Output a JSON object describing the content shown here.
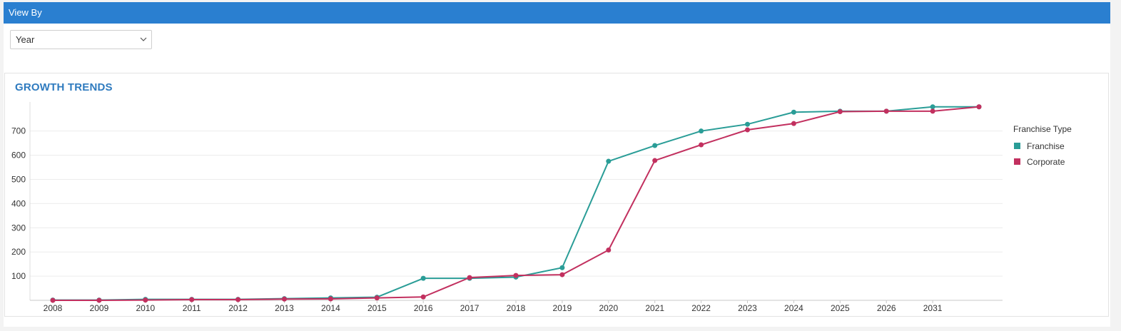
{
  "header": {
    "title": "View By"
  },
  "view_by": {
    "selected": "Year"
  },
  "chart_data": {
    "type": "line",
    "title": "GROWTH TRENDS",
    "xlabel": "",
    "ylabel": "",
    "categories": [
      "2008",
      "2009",
      "2010",
      "2011",
      "2012",
      "2013",
      "2014",
      "2015",
      "2016",
      "2017",
      "2018",
      "2019",
      "2020",
      "2021",
      "2022",
      "2023",
      "2024",
      "2025",
      "2026",
      "2031",
      ""
    ],
    "y_ticks": [
      100,
      200,
      300,
      400,
      500,
      600,
      700
    ],
    "ylim": [
      0,
      820
    ],
    "grid": true,
    "legend_title": "Franchise Type",
    "legend_position": "right",
    "series": [
      {
        "name": "Franchise",
        "color": "#2a9d97",
        "values": [
          1,
          1,
          4,
          4,
          4,
          7,
          10,
          13,
          91,
          91,
          96,
          135,
          575,
          640,
          700,
          728,
          778,
          782,
          782,
          800,
          800
        ]
      },
      {
        "name": "Corporate",
        "color": "#c2305f",
        "values": [
          0,
          0,
          1,
          3,
          3,
          5,
          6,
          10,
          14,
          94,
          103,
          106,
          208,
          578,
          643,
          705,
          731,
          780,
          782,
          782,
          800
        ]
      }
    ]
  }
}
